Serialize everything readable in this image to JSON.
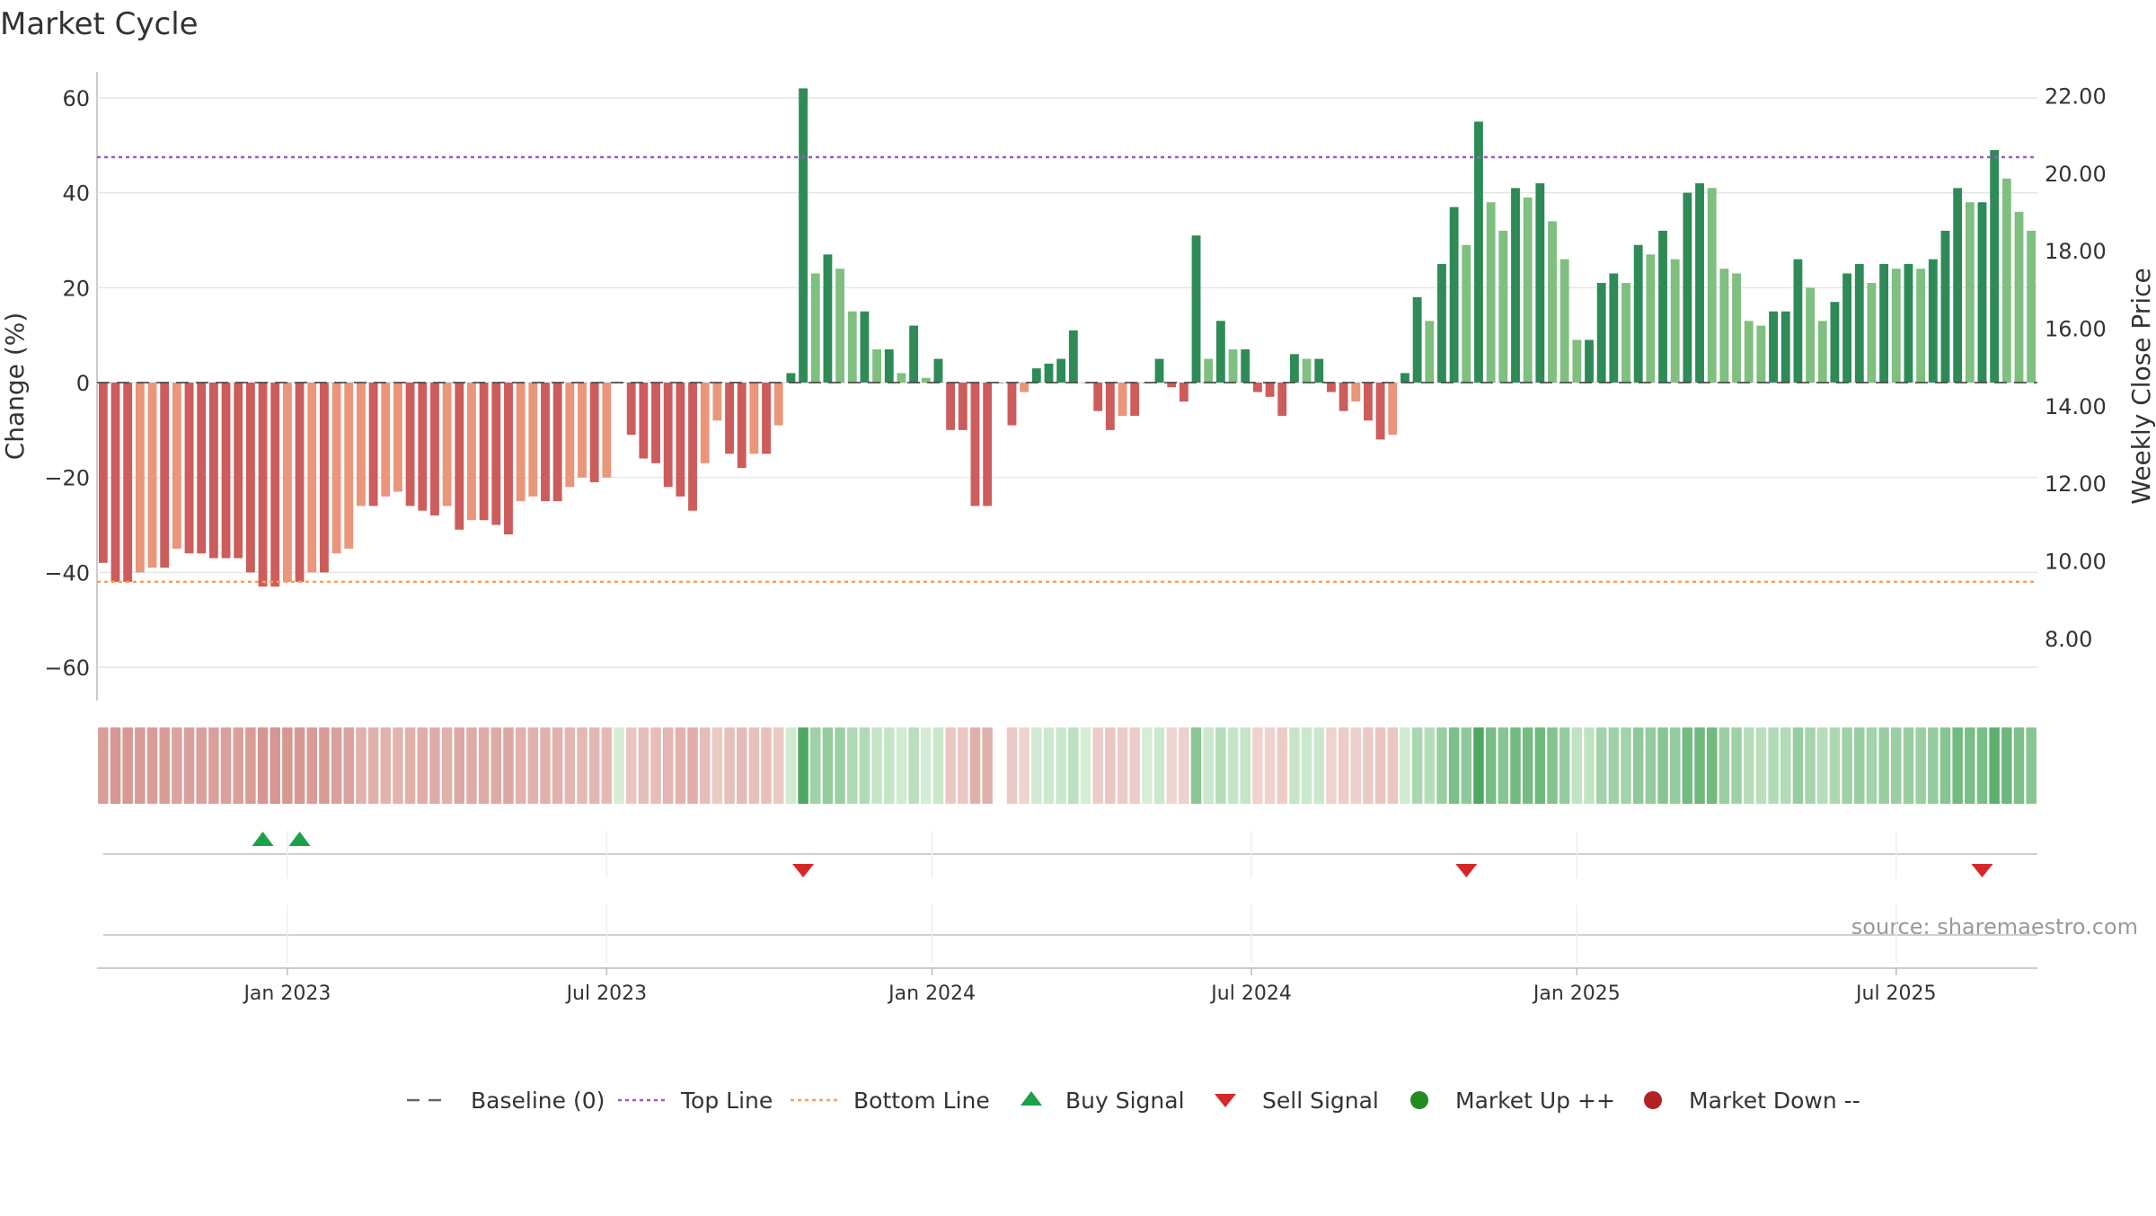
{
  "page": {
    "title": "Market Cycle"
  },
  "chart_data": {
    "type": "bar",
    "title": "Market Cycle",
    "ylabel": "Change (%)",
    "ylabel_right": "Weekly Close Price",
    "ylim": [
      -67,
      67
    ],
    "yticks": [
      -60,
      -40,
      -20,
      0,
      20,
      40,
      60
    ],
    "y2lim": [
      6.4,
      22.8
    ],
    "y2ticks": [
      "8.00",
      "10.00",
      "12.00",
      "14.00",
      "16.00",
      "18.00",
      "20.00",
      "22.00"
    ],
    "xticks": [
      {
        "label": "Jan 2023",
        "index": 15.0
      },
      {
        "label": "Jul 2023",
        "index": 41.0
      },
      {
        "label": "Jan 2024",
        "index": 67.5
      },
      {
        "label": "Jul 2024",
        "index": 93.5
      },
      {
        "label": "Jan 2025",
        "index": 120.0
      },
      {
        "label": "Jul 2025",
        "index": 146.0
      }
    ],
    "top_line": 47.5,
    "bottom_line": -42,
    "values": [
      -38,
      -42,
      -42,
      -40,
      -39,
      -39,
      -35,
      -36,
      -36,
      -37,
      -37,
      -37,
      -40,
      -43,
      -43,
      -42,
      -42,
      -40,
      -40,
      -36,
      -35,
      -26,
      -26,
      -24,
      -23,
      -26,
      -27,
      -28,
      -26,
      -31,
      -29,
      -29,
      -30,
      -32,
      -25,
      -24,
      -25,
      -25,
      -22,
      -20,
      -21,
      -20,
      0,
      -11,
      -16,
      -17,
      -22,
      -24,
      -27,
      -17,
      -8,
      -15,
      -18,
      -15,
      -15,
      -9,
      2,
      62,
      23,
      27,
      24,
      15,
      15,
      7,
      7,
      2,
      12,
      1,
      5,
      -10,
      -10,
      -26,
      -26,
      0,
      -9,
      -2,
      3,
      4,
      5,
      11,
      0,
      -6,
      -10,
      -7,
      -7,
      0,
      5,
      -1,
      -4,
      31,
      5,
      13,
      7,
      7,
      -2,
      -3,
      -7,
      6,
      5,
      5,
      -2,
      -6,
      -4,
      -8,
      -12,
      -11,
      2,
      18,
      13,
      25,
      37,
      29,
      55,
      38,
      32,
      41,
      39,
      42,
      34,
      26,
      9,
      9,
      21,
      23,
      21,
      29,
      27,
      32,
      26,
      40,
      42,
      41,
      24,
      23,
      13,
      12,
      15,
      15,
      26,
      20,
      13,
      17,
      23,
      25,
      21,
      25,
      24,
      25,
      24,
      26,
      32,
      41,
      38,
      38,
      49,
      43,
      36,
      32
    ],
    "price_baseline": "14.80",
    "heat_gaps": [
      73
    ],
    "signals": {
      "buy": [
        13,
        16
      ],
      "sell": [
        57,
        111,
        153
      ]
    },
    "legend": [
      {
        "key": "baseline",
        "label": "Baseline (0)"
      },
      {
        "key": "top",
        "label": "Top Line"
      },
      {
        "key": "bottom",
        "label": "Bottom Line"
      },
      {
        "key": "buy",
        "label": "Buy Signal"
      },
      {
        "key": "sell",
        "label": "Sell Signal"
      },
      {
        "key": "up",
        "label": "Market Up ++"
      },
      {
        "key": "down",
        "label": "Market Down --"
      }
    ],
    "legend_position": "bottom",
    "source": "source: sharemaestro.com",
    "grid": true
  },
  "colors": {
    "pos_strong": "#2e8b57",
    "pos_weak": "#7fbf7f",
    "neg_strong": "#cd5c5c",
    "neg_weak": "#e9967a",
    "top_line": "#9b59d0",
    "bottom_line": "#f0a060",
    "buy": "#1aa14a",
    "sell": "#d62728",
    "market_up": "#228b22",
    "market_down": "#b22222",
    "grid": "#e6e6e6",
    "axis": "#bbbbbb"
  }
}
